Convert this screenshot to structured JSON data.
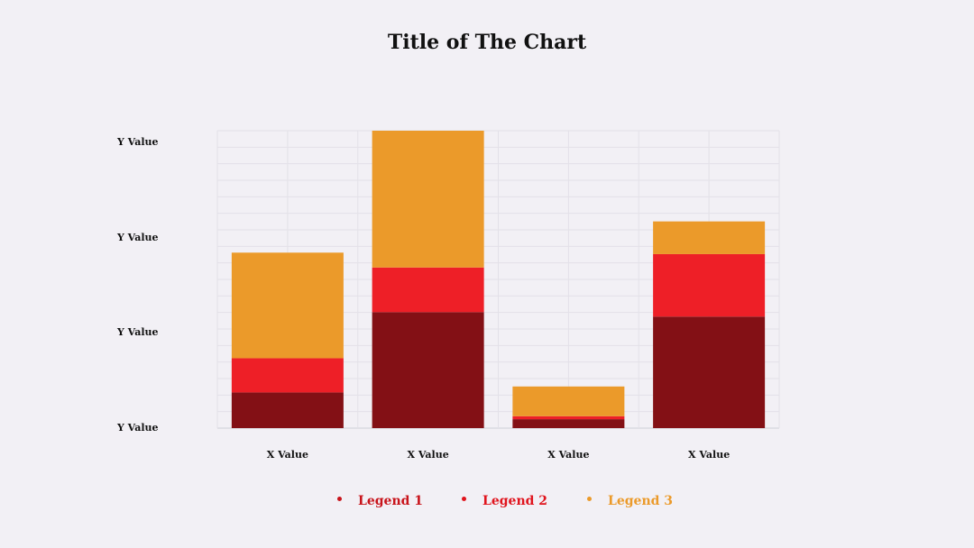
{
  "chart_data": {
    "type": "bar",
    "stacked": true,
    "title": "Title of The Chart",
    "categories": [
      "X Value",
      "X Value",
      "X Value",
      "X Value"
    ],
    "y_tick_labels": [
      "Y Value",
      "Y Value",
      "Y Value",
      "Y Value"
    ],
    "ylim": [
      0,
      100
    ],
    "series": [
      {
        "name": "Legend 1",
        "color": "#831015",
        "values": [
          12,
          39,
          3,
          37.5
        ]
      },
      {
        "name": "Legend 2",
        "color": "#ee1f27",
        "values": [
          11.5,
          15,
          1,
          21
        ]
      },
      {
        "name": "Legend 3",
        "color": "#eb9a2a",
        "values": [
          35.5,
          46,
          10,
          11
        ]
      }
    ],
    "grid": true,
    "legend_position": "bottom"
  }
}
